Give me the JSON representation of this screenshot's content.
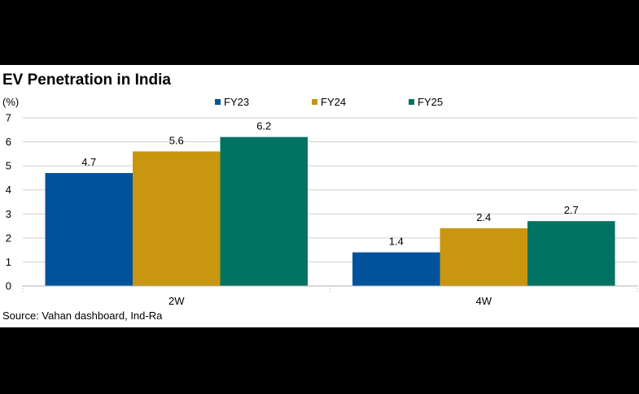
{
  "chart_data": {
    "type": "bar",
    "title": "EV Penetration in India",
    "ylabel": "(%)",
    "categories": [
      "2W",
      "4W"
    ],
    "series": [
      {
        "name": "FY23",
        "values": [
          4.7,
          1.4
        ],
        "color": "#00539b"
      },
      {
        "name": "FY24",
        "values": [
          5.6,
          2.4
        ],
        "color": "#c8960f"
      },
      {
        "name": "FY25",
        "values": [
          6.2,
          2.7
        ],
        "color": "#007363"
      }
    ],
    "ylim": [
      0,
      7
    ],
    "yticks": [
      "0",
      "1",
      "2",
      "3",
      "4",
      "5",
      "6",
      "7"
    ],
    "grid": true,
    "legend_position": "top",
    "data_labels": true,
    "source": "Source: Vahan dashboard, Ind-Ra"
  }
}
